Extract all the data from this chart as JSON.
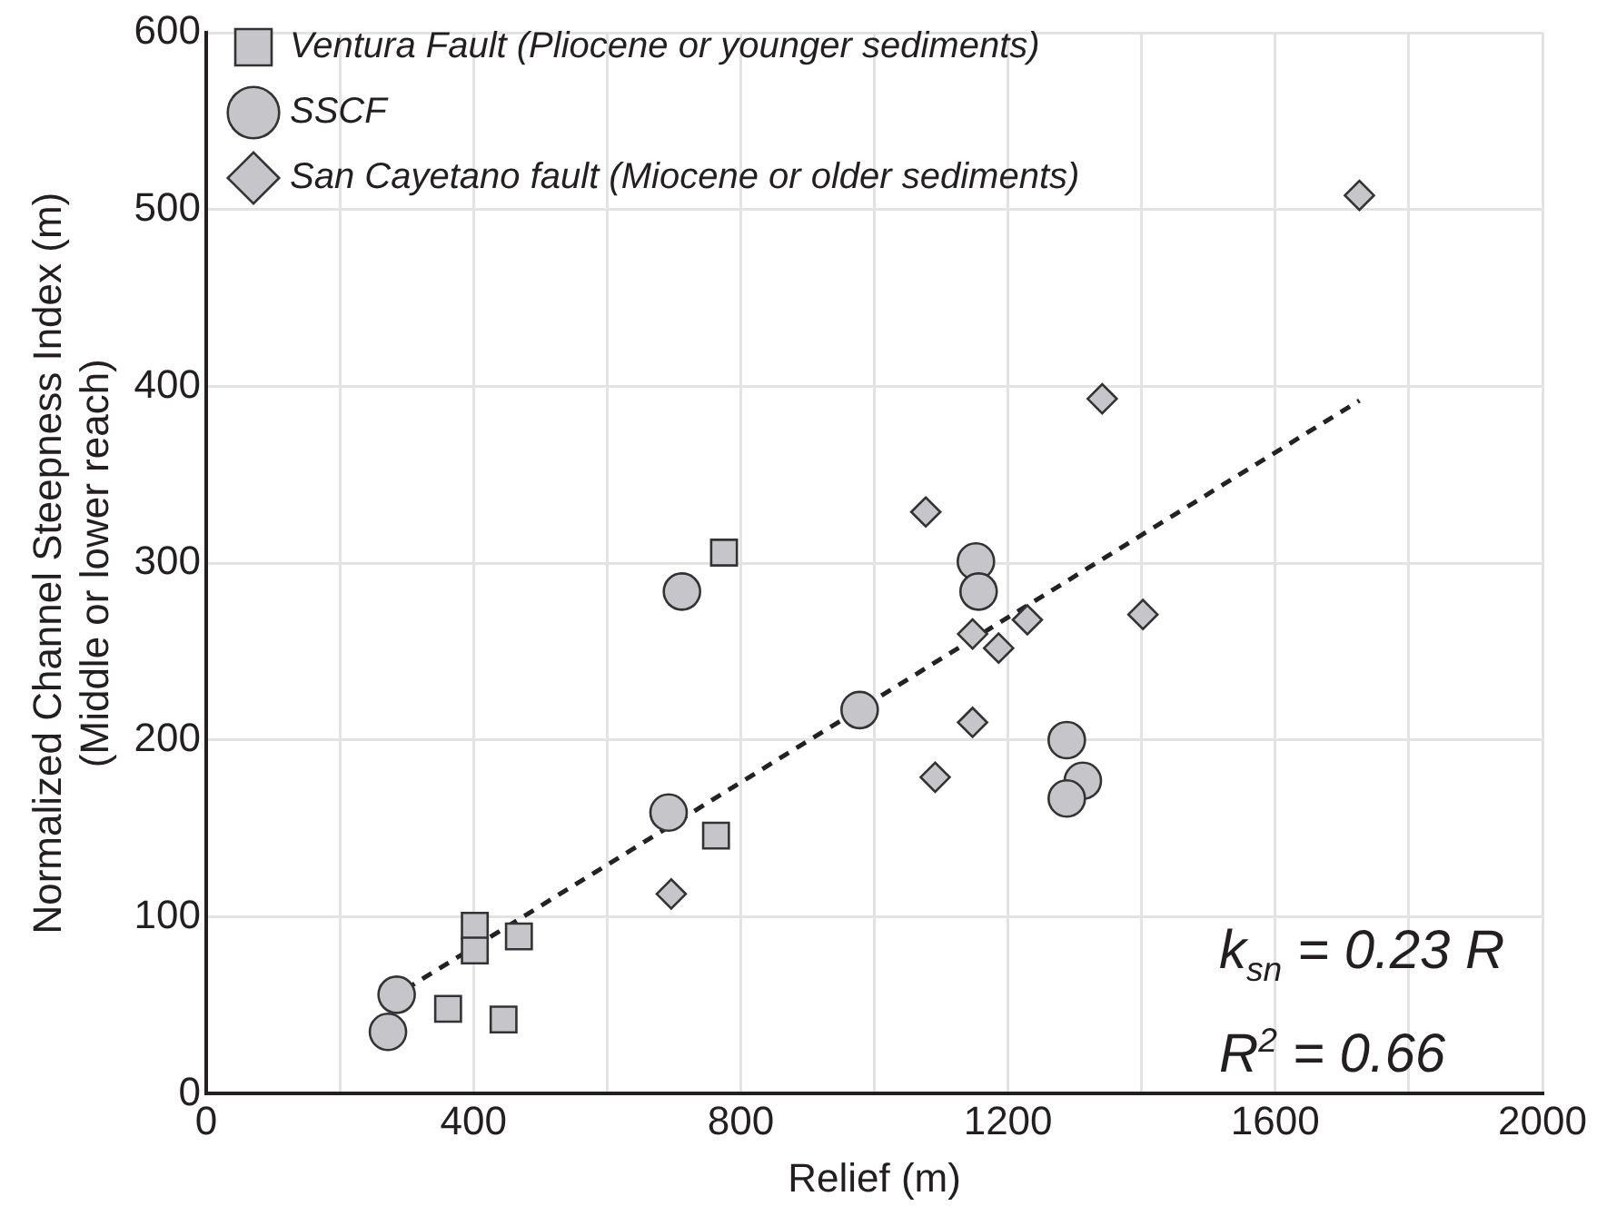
{
  "chart_data": {
    "type": "scatter",
    "xlabel": "Relief (m)",
    "ylabel": "Normalized Channel Steepness Index (m)\n(Middle or lower reach)",
    "xlim": [
      0,
      2000
    ],
    "xticks": [
      0,
      {
        "value": 200,
        "label": null
      },
      400,
      {
        "value": 600,
        "label": null
      },
      800,
      {
        "value": 1000,
        "label": null
      },
      1200,
      {
        "value": 1400,
        "label": null
      },
      1600,
      {
        "value": 1800,
        "label": null
      },
      2000
    ],
    "ylim": [
      0,
      600
    ],
    "yticks": [
      0,
      100,
      200,
      300,
      400,
      500,
      600
    ],
    "grid": true,
    "legend": "top left",
    "annotations": [
      "k$_{sn}$ = 0.23 R",
      "R$^{2}$ = 0.66"
    ],
    "series": [
      {
        "name": "Ventura Fault (Pliocene or younger sediments)",
        "marker": "square",
        "color": "#c6c6ca",
        "x": [
          362,
          445,
          402,
          402,
          468,
          763,
          775
        ],
        "values": [
          48,
          42,
          95,
          81,
          89,
          146,
          306
        ]
      },
      {
        "name": "SSCF",
        "marker": "circle",
        "color": "#c6c6ca",
        "x": [
          285,
          272,
          692,
          712,
          978,
          1152,
          1156,
          1288,
          1312,
          1288
        ],
        "values": [
          56,
          35,
          159,
          284,
          217,
          301,
          284,
          200,
          177,
          167
        ]
      },
      {
        "name": "San Cayetano fault (Miocene or older sediments)",
        "marker": "diamond",
        "color": "#c6c6ca",
        "x": [
          696,
          1091,
          1341,
          1077,
          1147,
          1186,
          1229,
          1402,
          1147,
          1726
        ],
        "values": [
          113,
          179,
          393,
          329,
          260,
          252,
          268,
          271,
          210,
          508
        ]
      },
      {
        "type": "line",
        "line_style": "dashed",
        "marker": "none",
        "color": "#222222",
        "x": [
          298,
          1726
        ],
        "values": [
          59,
          392
        ]
      }
    ]
  }
}
